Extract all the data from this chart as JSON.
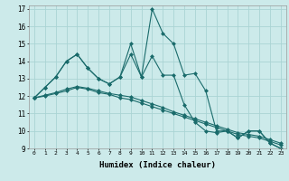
{
  "title": "",
  "xlabel": "Humidex (Indice chaleur)",
  "xlim": [
    -0.5,
    23.5
  ],
  "ylim": [
    9,
    17.2
  ],
  "yticks": [
    9,
    10,
    11,
    12,
    13,
    14,
    15,
    16,
    17
  ],
  "xticks": [
    0,
    1,
    2,
    3,
    4,
    5,
    6,
    7,
    8,
    9,
    10,
    11,
    12,
    13,
    14,
    15,
    16,
    17,
    18,
    19,
    20,
    21,
    22,
    23
  ],
  "bg_color": "#cceaea",
  "grid_color": "#aad4d4",
  "line_color": "#1a6b6b",
  "series": [
    [
      11.9,
      12.5,
      13.1,
      14.0,
      14.4,
      13.6,
      13.0,
      12.7,
      13.1,
      15.0,
      13.1,
      17.0,
      15.6,
      15.0,
      13.2,
      13.3,
      12.3,
      10.0,
      10.0,
      9.6,
      10.0,
      10.0,
      9.3,
      9.0
    ],
    [
      11.9,
      12.5,
      13.1,
      14.0,
      14.4,
      13.6,
      13.0,
      12.7,
      13.1,
      14.4,
      13.1,
      14.3,
      13.2,
      13.2,
      11.5,
      10.5,
      10.0,
      9.9,
      10.0,
      9.6,
      10.0,
      10.0,
      9.3,
      9.0
    ],
    [
      11.9,
      12.0,
      12.15,
      12.3,
      12.5,
      12.4,
      12.2,
      12.1,
      11.9,
      11.8,
      11.6,
      11.4,
      11.2,
      11.0,
      10.8,
      10.6,
      10.4,
      10.2,
      10.0,
      9.8,
      9.7,
      9.6,
      9.4,
      9.2
    ],
    [
      11.9,
      12.05,
      12.2,
      12.4,
      12.55,
      12.45,
      12.3,
      12.15,
      12.05,
      11.95,
      11.75,
      11.55,
      11.35,
      11.1,
      10.9,
      10.7,
      10.5,
      10.3,
      10.1,
      9.9,
      9.8,
      9.7,
      9.5,
      9.3
    ]
  ],
  "markersize": 2.5
}
